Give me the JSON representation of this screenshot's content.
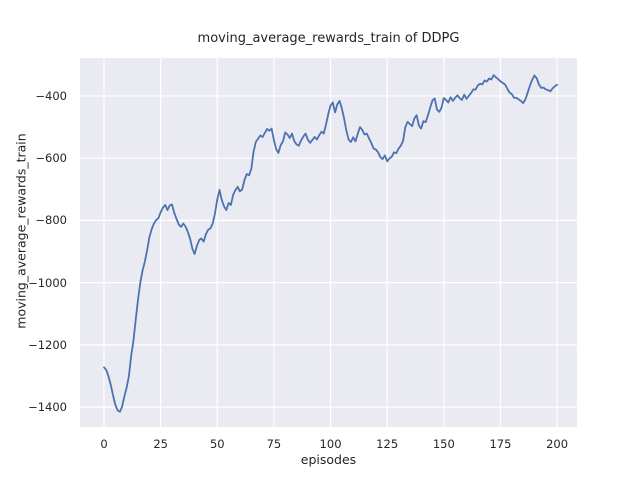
{
  "figure": {
    "background": "#ffffff"
  },
  "chart_data": {
    "type": "line",
    "title": "moving_average_rewards_train of DDPG",
    "xlabel": "episodes",
    "ylabel": "moving_average_rewards_train",
    "x_ticks": [
      0,
      25,
      50,
      75,
      100,
      125,
      150,
      175,
      200
    ],
    "x_tick_labels": [
      "0",
      "25",
      "50",
      "75",
      "100",
      "125",
      "150",
      "175",
      "200"
    ],
    "y_ticks": [
      -400,
      -600,
      -800,
      -1000,
      -1200,
      -1400
    ],
    "y_tick_labels": [
      "−400",
      "−600",
      "−800",
      "−1000",
      "−1200",
      "−1400"
    ],
    "xlim": [
      -10.6,
      208.8
    ],
    "ylim": [
      -1464,
      -278
    ],
    "grid": true,
    "legend": false,
    "style": {
      "axes_background": "#eaeaf2",
      "grid_color": "#ffffff",
      "text_color": "#262626"
    },
    "x_start": 0,
    "x_step": 1,
    "series": [
      {
        "name": "moving_average_rewards_train",
        "color": "#4c72b0",
        "y": [
          -1272,
          -1281,
          -1301,
          -1329,
          -1363,
          -1392,
          -1410,
          -1415,
          -1398,
          -1365,
          -1337,
          -1300,
          -1235,
          -1185,
          -1120,
          -1055,
          -1000,
          -962,
          -933,
          -896,
          -856,
          -829,
          -811,
          -799,
          -793,
          -774,
          -759,
          -750,
          -767,
          -752,
          -749,
          -775,
          -795,
          -813,
          -821,
          -810,
          -820,
          -837,
          -859,
          -891,
          -908,
          -882,
          -863,
          -858,
          -868,
          -844,
          -830,
          -825,
          -810,
          -777,
          -732,
          -702,
          -734,
          -755,
          -767,
          -744,
          -750,
          -718,
          -703,
          -692,
          -707,
          -700,
          -670,
          -651,
          -655,
          -635,
          -580,
          -548,
          -537,
          -527,
          -532,
          -519,
          -506,
          -512,
          -505,
          -542,
          -571,
          -583,
          -558,
          -546,
          -517,
          -524,
          -535,
          -521,
          -545,
          -556,
          -560,
          -543,
          -530,
          -521,
          -541,
          -551,
          -541,
          -532,
          -540,
          -526,
          -515,
          -521,
          -492,
          -458,
          -431,
          -421,
          -453,
          -427,
          -416,
          -441,
          -472,
          -512,
          -541,
          -548,
          -533,
          -546,
          -522,
          -500,
          -509,
          -524,
          -521,
          -536,
          -551,
          -569,
          -572,
          -581,
          -597,
          -603,
          -591,
          -610,
          -601,
          -596,
          -581,
          -584,
          -570,
          -560,
          -545,
          -500,
          -483,
          -490,
          -497,
          -472,
          -462,
          -495,
          -505,
          -481,
          -484,
          -463,
          -437,
          -414,
          -408,
          -444,
          -451,
          -438,
          -407,
          -413,
          -421,
          -404,
          -416,
          -406,
          -398,
          -407,
          -413,
          -396,
          -409,
          -400,
          -391,
          -379,
          -380,
          -366,
          -361,
          -363,
          -350,
          -354,
          -344,
          -347,
          -333,
          -340,
          -346,
          -353,
          -358,
          -363,
          -376,
          -389,
          -394,
          -406,
          -406,
          -411,
          -416,
          -423,
          -411,
          -390,
          -367,
          -349,
          -334,
          -343,
          -363,
          -374,
          -373,
          -379,
          -381,
          -385,
          -376,
          -369,
          -364
        ]
      }
    ]
  }
}
